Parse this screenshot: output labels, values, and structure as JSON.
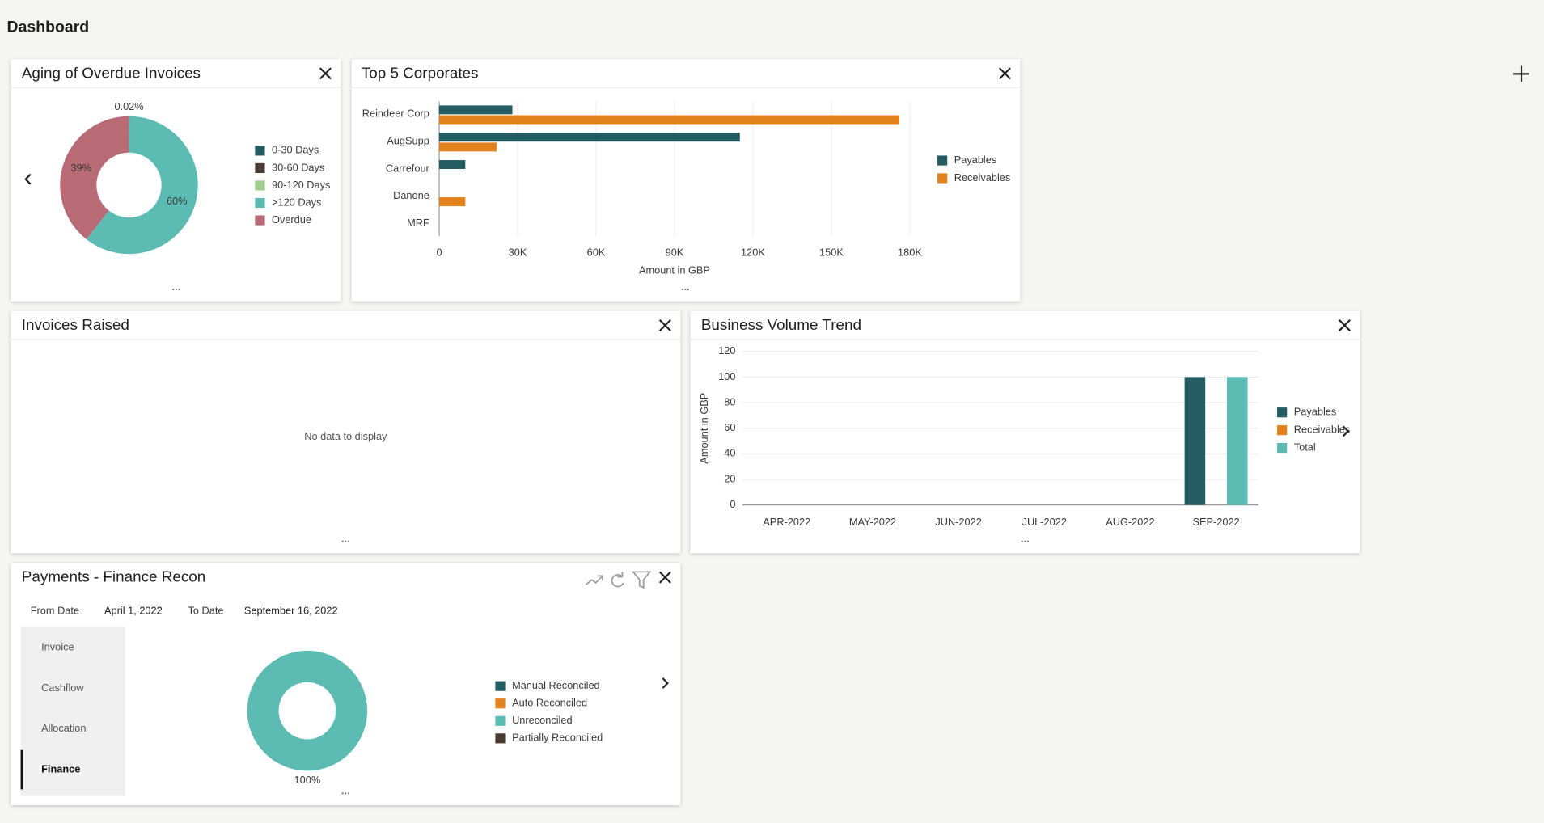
{
  "header": {
    "title": "Dashboard"
  },
  "chart_data": [
    {
      "type": "pie",
      "donut": true,
      "title": "Aging of Overdue Invoices",
      "categories": [
        "0-30 Days",
        "30-60 Days",
        "90-120 Days",
        ">120 Days",
        "Overdue"
      ],
      "values": [
        0.02,
        0,
        0,
        60,
        39
      ],
      "value_labels": [
        "0.02%",
        null,
        null,
        "60%",
        "39%"
      ],
      "colors": [
        "#245c64",
        "#4d3c34",
        "#9fce8f",
        "#5cbcb4",
        "#b86b75"
      ],
      "legend": "right"
    },
    {
      "type": "bar",
      "orientation": "horizontal",
      "title": "Top 5 Corporates",
      "categories": [
        "Reindeer Corp",
        "AugSupp",
        "Carrefour",
        "Danone",
        "MRF"
      ],
      "series": [
        {
          "name": "Payables",
          "color": "#245c64",
          "values": [
            28000,
            115000,
            10000,
            0,
            0
          ]
        },
        {
          "name": "Receivables",
          "color": "#e3811d",
          "values": [
            176000,
            22000,
            0,
            10000,
            0
          ]
        }
      ],
      "xlim": [
        0,
        180000
      ],
      "xticks": [
        0,
        {
          "value": 30000,
          "label": "30K"
        },
        {
          "value": 60000,
          "label": "60K"
        },
        {
          "value": 90000,
          "label": "90K"
        },
        {
          "value": 120000,
          "label": "120K"
        },
        {
          "value": 150000,
          "label": "150K"
        },
        {
          "value": 180000,
          "label": "180K"
        }
      ],
      "xlabel": "Amount in GBP",
      "grid": true,
      "legend": "right"
    },
    {
      "type": "bar",
      "orientation": "vertical",
      "title": "Business Volume Trend",
      "categories": [
        "APR-2022",
        "MAY-2022",
        "JUN-2022",
        "JUL-2022",
        "AUG-2022",
        "SEP-2022"
      ],
      "series": [
        {
          "name": "Payables",
          "color": "#245c64",
          "values": [
            0,
            0,
            0,
            0,
            0,
            100
          ]
        },
        {
          "name": "Receivables",
          "color": "#e3811d",
          "values": [
            0,
            0,
            0,
            0,
            0,
            0
          ]
        },
        {
          "name": "Total",
          "color": "#5cbcb4",
          "values": [
            0,
            0,
            0,
            0,
            0,
            100
          ]
        }
      ],
      "ylim": [
        0,
        120
      ],
      "yticks": [
        0,
        20,
        40,
        60,
        80,
        100,
        120
      ],
      "ylabel": "Amount in GBP",
      "grid": true,
      "legend": "right"
    },
    {
      "type": "pie",
      "donut": true,
      "title": "Payments - Finance Recon",
      "categories": [
        "Manual Reconciled",
        "Auto Reconciled",
        "Unreconciled",
        "Partially Reconciled"
      ],
      "values": [
        0,
        0,
        100,
        0
      ],
      "value_labels": [
        null,
        null,
        "100%",
        null
      ],
      "colors": [
        "#245c64",
        "#e3811d",
        "#5cbcb4",
        "#4d3c34"
      ],
      "legend": "right"
    }
  ],
  "panels": {
    "invoices_raised": {
      "title": "Invoices Raised",
      "message": "No data to display"
    },
    "finance_recon": {
      "from_label": "From Date",
      "from_date": "April 1, 2022",
      "to_label": "To Date",
      "to_date": "September 16, 2022",
      "tabs": [
        "Invoice",
        "Cashflow",
        "Allocation",
        "Finance"
      ],
      "selected_tab": 3
    }
  }
}
